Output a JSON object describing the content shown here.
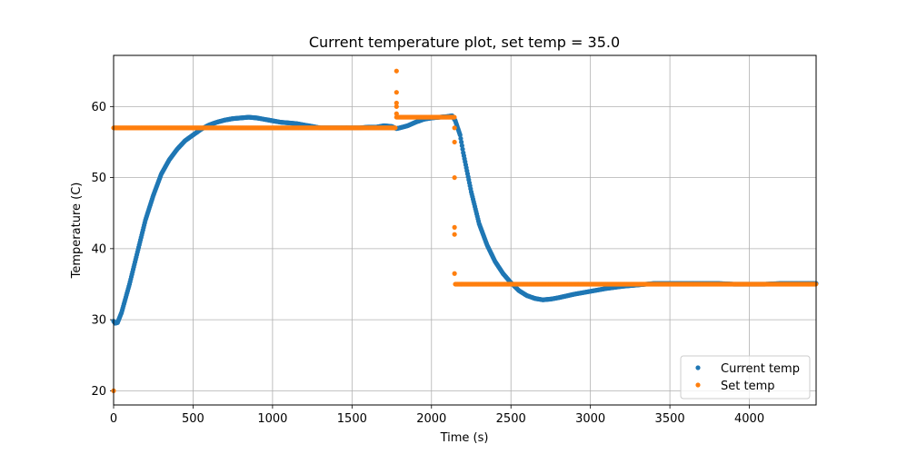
{
  "chart_data": {
    "type": "scatter",
    "title": "Current temperature plot, set temp = 35.0",
    "xlabel": "Time (s)",
    "ylabel": "Temperature (C)",
    "xlim": [
      0,
      4420
    ],
    "ylim": [
      18,
      67.2
    ],
    "x_ticks": [
      0,
      500,
      1000,
      1500,
      2000,
      2500,
      3000,
      3500,
      4000
    ],
    "y_ticks": [
      20,
      30,
      40,
      50,
      60
    ],
    "grid": true,
    "legend_position": "bottom-right",
    "series": [
      {
        "name": "Current temp",
        "color": "#1f77b4",
        "points": [
          [
            0,
            29.8
          ],
          [
            10,
            29.5
          ],
          [
            25,
            29.6
          ],
          [
            50,
            31
          ],
          [
            100,
            35
          ],
          [
            150,
            39.5
          ],
          [
            200,
            44
          ],
          [
            250,
            47.5
          ],
          [
            300,
            50.5
          ],
          [
            350,
            52.5
          ],
          [
            400,
            54
          ],
          [
            450,
            55.2
          ],
          [
            500,
            56
          ],
          [
            550,
            56.8
          ],
          [
            600,
            57.4
          ],
          [
            650,
            57.8
          ],
          [
            700,
            58.1
          ],
          [
            750,
            58.3
          ],
          [
            800,
            58.4
          ],
          [
            850,
            58.5
          ],
          [
            900,
            58.4
          ],
          [
            950,
            58.2
          ],
          [
            1000,
            58
          ],
          [
            1050,
            57.8
          ],
          [
            1100,
            57.7
          ],
          [
            1150,
            57.6
          ],
          [
            1200,
            57.4
          ],
          [
            1250,
            57.2
          ],
          [
            1300,
            57
          ],
          [
            1350,
            57
          ],
          [
            1400,
            57
          ],
          [
            1450,
            57
          ],
          [
            1500,
            57
          ],
          [
            1550,
            57
          ],
          [
            1600,
            57.1
          ],
          [
            1650,
            57.1
          ],
          [
            1700,
            57.3
          ],
          [
            1750,
            57.2
          ],
          [
            1780,
            56.9
          ],
          [
            1800,
            57
          ],
          [
            1850,
            57.3
          ],
          [
            1900,
            57.8
          ],
          [
            1950,
            58.2
          ],
          [
            2000,
            58.4
          ],
          [
            2050,
            58.5
          ],
          [
            2100,
            58.6
          ],
          [
            2130,
            58.7
          ],
          [
            2150,
            58
          ],
          [
            2180,
            56
          ],
          [
            2200,
            53.5
          ],
          [
            2250,
            48
          ],
          [
            2300,
            43.5
          ],
          [
            2350,
            40.5
          ],
          [
            2400,
            38.2
          ],
          [
            2450,
            36.5
          ],
          [
            2500,
            35.2
          ],
          [
            2550,
            34.1
          ],
          [
            2600,
            33.4
          ],
          [
            2650,
            33
          ],
          [
            2700,
            32.8
          ],
          [
            2750,
            32.9
          ],
          [
            2800,
            33.1
          ],
          [
            2900,
            33.6
          ],
          [
            3000,
            34
          ],
          [
            3100,
            34.4
          ],
          [
            3200,
            34.7
          ],
          [
            3300,
            34.9
          ],
          [
            3400,
            35.1
          ],
          [
            3500,
            35.1
          ],
          [
            3600,
            35.1
          ],
          [
            3700,
            35.1
          ],
          [
            3800,
            35.1
          ],
          [
            3900,
            35
          ],
          [
            4000,
            35
          ],
          [
            4100,
            35
          ],
          [
            4200,
            35.1
          ],
          [
            4300,
            35.1
          ],
          [
            4420,
            35.1
          ]
        ]
      },
      {
        "name": "Set temp",
        "color": "#ff7f0e",
        "segments": [
          {
            "x_start": 0,
            "x_end": 1775,
            "y": 57.0
          },
          {
            "x_start": 1780,
            "x_end": 2145,
            "y": 58.5
          },
          {
            "x_start": 2150,
            "x_end": 4420,
            "y": 35.0
          }
        ],
        "outliers": [
          [
            0,
            20
          ],
          [
            1780,
            65
          ],
          [
            1780,
            62
          ],
          [
            1780,
            60.5
          ],
          [
            1780,
            60
          ],
          [
            1780,
            59
          ],
          [
            2145,
            57
          ],
          [
            2145,
            55
          ],
          [
            2145,
            50
          ],
          [
            2145,
            43
          ],
          [
            2145,
            42
          ],
          [
            2145,
            36.5
          ]
        ]
      }
    ]
  }
}
